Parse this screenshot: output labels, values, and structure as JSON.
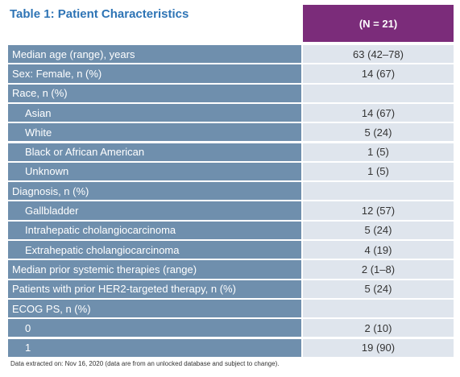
{
  "title": "Table 1: Patient Characteristics",
  "table": {
    "header": "(N = 21)",
    "rows": [
      {
        "label": "Median age (range), years",
        "value": "63 (42–78)"
      },
      {
        "label": "Sex: Female, n (%)",
        "value": "14 (67)"
      },
      {
        "label": "Race, n (%)",
        "items": [
          {
            "label": "Asian",
            "value": "14 (67)"
          },
          {
            "label": "White",
            "value": "5 (24)"
          },
          {
            "label": "Black or African American",
            "value": "1 (5)"
          },
          {
            "label": "Unknown",
            "value": "1 (5)"
          }
        ]
      },
      {
        "label": "Diagnosis, n (%)",
        "items": [
          {
            "label": "Gallbladder",
            "value": "12 (57)"
          },
          {
            "label": "Intrahepatic cholangiocarcinoma",
            "value": "5 (24)"
          },
          {
            "label": "Extrahepatic cholangiocarcinoma",
            "value": "4 (19)"
          }
        ]
      },
      {
        "label": "Median prior systemic therapies (range)",
        "value": "2 (1–8)"
      },
      {
        "label": "Patients with prior HER2-targeted therapy, n (%)",
        "value": "5 (24)"
      },
      {
        "label": "ECOG PS, n (%)",
        "items": [
          {
            "label": "0",
            "value": "2 (10)"
          },
          {
            "label": "1",
            "value": "19 (90)"
          }
        ]
      }
    ]
  },
  "footnote": "Data extracted on: Nov 16, 2020 (data are from an unlocked database and subject to change)."
}
